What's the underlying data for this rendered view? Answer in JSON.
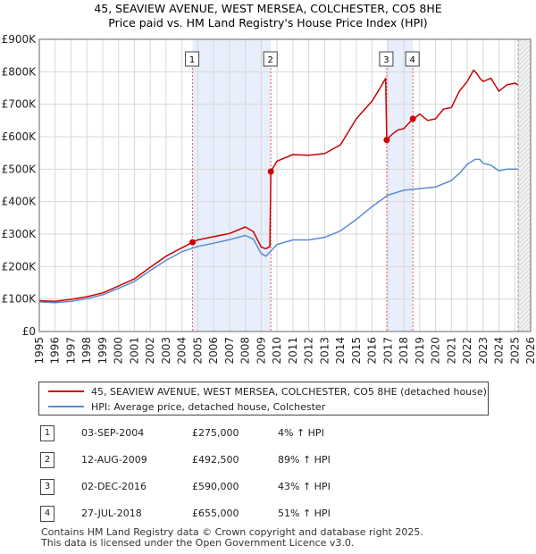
{
  "chart_data": {
    "type": "line",
    "title": "45, SEAVIEW AVENUE, WEST MERSEA, COLCHESTER, CO5 8HE",
    "subtitle": "Price paid vs. HM Land Registry's House Price Index (HPI)",
    "xlim": [
      1995,
      2026
    ],
    "ylim": [
      0,
      900000
    ],
    "y_ticks": [
      0,
      100000,
      200000,
      300000,
      400000,
      500000,
      600000,
      700000,
      800000,
      900000
    ],
    "y_tick_labels": [
      "£0",
      "£100K",
      "£200K",
      "£300K",
      "£400K",
      "£500K",
      "£600K",
      "£700K",
      "£800K",
      "£900K"
    ],
    "x_ticks": [
      1995,
      1996,
      1997,
      1998,
      1999,
      2000,
      2001,
      2002,
      2003,
      2004,
      2005,
      2006,
      2007,
      2008,
      2009,
      2010,
      2011,
      2012,
      2013,
      2014,
      2015,
      2016,
      2017,
      2018,
      2019,
      2020,
      2021,
      2022,
      2023,
      2024,
      2025,
      2026
    ],
    "grid": true,
    "forecast_start": 2025.2,
    "shaded_ranges": [
      [
        2004.67,
        2009.61
      ],
      [
        2016.92,
        2018.57
      ]
    ],
    "series": [
      {
        "name": "45, SEAVIEW AVENUE, WEST MERSEA, COLCHESTER, CO5 8HE (detached house)",
        "color": "#cc0000",
        "x": [
          1995,
          1996,
          1997,
          1998,
          1999,
          2000,
          2001,
          2002,
          2003,
          2004,
          2004.67,
          2005,
          2006,
          2007,
          2008,
          2008.5,
          2009,
          2009.3,
          2009.55,
          2009.61,
          2010,
          2011,
          2012,
          2013,
          2014,
          2015,
          2016,
          2016.5,
          2016.85,
          2016.92,
          2017.2,
          2017.6,
          2018,
          2018.57,
          2018.8,
          2019,
          2019.5,
          2020,
          2020.5,
          2021,
          2021.5,
          2022,
          2022.4,
          2022.6,
          2022.8,
          2023,
          2023.5,
          2024,
          2024.5,
          2025,
          2025.2
        ],
        "values": [
          95000,
          93000,
          99000,
          107000,
          119000,
          140000,
          162000,
          198000,
          232000,
          258000,
          275000,
          282000,
          292000,
          302000,
          322000,
          308000,
          260000,
          255000,
          262000,
          492500,
          525000,
          545000,
          543000,
          548000,
          575000,
          655000,
          710000,
          750000,
          780000,
          590000,
          605000,
          620000,
          625000,
          655000,
          662000,
          670000,
          650000,
          655000,
          685000,
          690000,
          740000,
          770000,
          805000,
          795000,
          780000,
          770000,
          780000,
          740000,
          760000,
          765000,
          760000
        ]
      },
      {
        "name": "HPI: Average price, detached house, Colchester",
        "color": "#5a8bd0",
        "x": [
          1995,
          1996,
          1997,
          1998,
          1999,
          2000,
          2001,
          2002,
          2003,
          2004,
          2005,
          2006,
          2007,
          2008,
          2008.5,
          2009,
          2009.3,
          2010,
          2011,
          2012,
          2013,
          2014,
          2015,
          2016,
          2017,
          2018,
          2019,
          2020,
          2021,
          2021.5,
          2022,
          2022.5,
          2022.8,
          2023,
          2023.5,
          2024,
          2024.5,
          2025,
          2025.2
        ],
        "values": [
          91000,
          89000,
          93000,
          101000,
          113000,
          133000,
          154000,
          188000,
          219000,
          246000,
          262000,
          272000,
          283000,
          296000,
          285000,
          240000,
          232000,
          268000,
          282000,
          282000,
          290000,
          310000,
          345000,
          385000,
          420000,
          435000,
          440000,
          445000,
          465000,
          487000,
          515000,
          530000,
          530000,
          518000,
          512000,
          495000,
          500000,
          500000,
          500000
        ]
      }
    ],
    "sale_markers": [
      {
        "label": "1",
        "x": 2004.67,
        "y": 275000
      },
      {
        "label": "2",
        "x": 2009.61,
        "y": 492500
      },
      {
        "label": "3",
        "x": 2016.92,
        "y": 590000
      },
      {
        "label": "4",
        "x": 2018.57,
        "y": 655000
      }
    ]
  },
  "legend": {
    "property_label": "45, SEAVIEW AVENUE, WEST MERSEA, COLCHESTER, CO5 8HE (detached house)",
    "hpi_label": "HPI: Average price, detached house, Colchester"
  },
  "sales": [
    {
      "num": "1",
      "date": "03-SEP-2004",
      "price": "£275,000",
      "hpi": "4% ↑ HPI"
    },
    {
      "num": "2",
      "date": "12-AUG-2009",
      "price": "£492,500",
      "hpi": "89% ↑ HPI"
    },
    {
      "num": "3",
      "date": "02-DEC-2016",
      "price": "£590,000",
      "hpi": "43% ↑ HPI"
    },
    {
      "num": "4",
      "date": "27-JUL-2018",
      "price": "£655,000",
      "hpi": "51% ↑ HPI"
    }
  ],
  "footer": {
    "line1": "Contains HM Land Registry data © Crown copyright and database right 2025.",
    "line2": "This data is licensed under the Open Government Licence v3.0."
  },
  "colors": {
    "property": "#cc0000",
    "hpi": "#5a8bd0",
    "shade": "#e8eefb",
    "grid": "#d8d8d8"
  }
}
